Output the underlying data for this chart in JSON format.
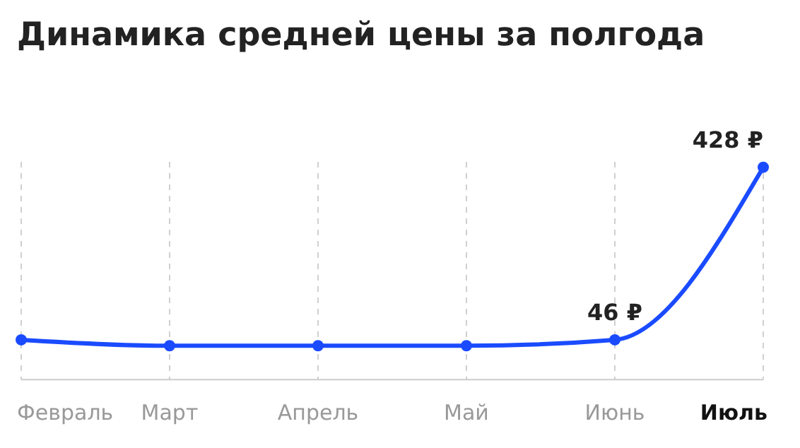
{
  "chart_data": {
    "type": "line",
    "title": "Динамика средней цены за полгода",
    "categories": [
      "Февраль",
      "Март",
      "Апрель",
      "Май",
      "Июнь",
      "Июль"
    ],
    "series": [
      {
        "color": "#1a4bff",
        "values": [
          46,
          33,
          33,
          33,
          46,
          428
        ],
        "value_labels": [
          null,
          null,
          null,
          null,
          "46 ₽",
          "428 ₽"
        ]
      }
    ],
    "ylim": [
      -42,
      440
    ],
    "grid": "x",
    "marker": "circle",
    "line_style": "solid"
  }
}
